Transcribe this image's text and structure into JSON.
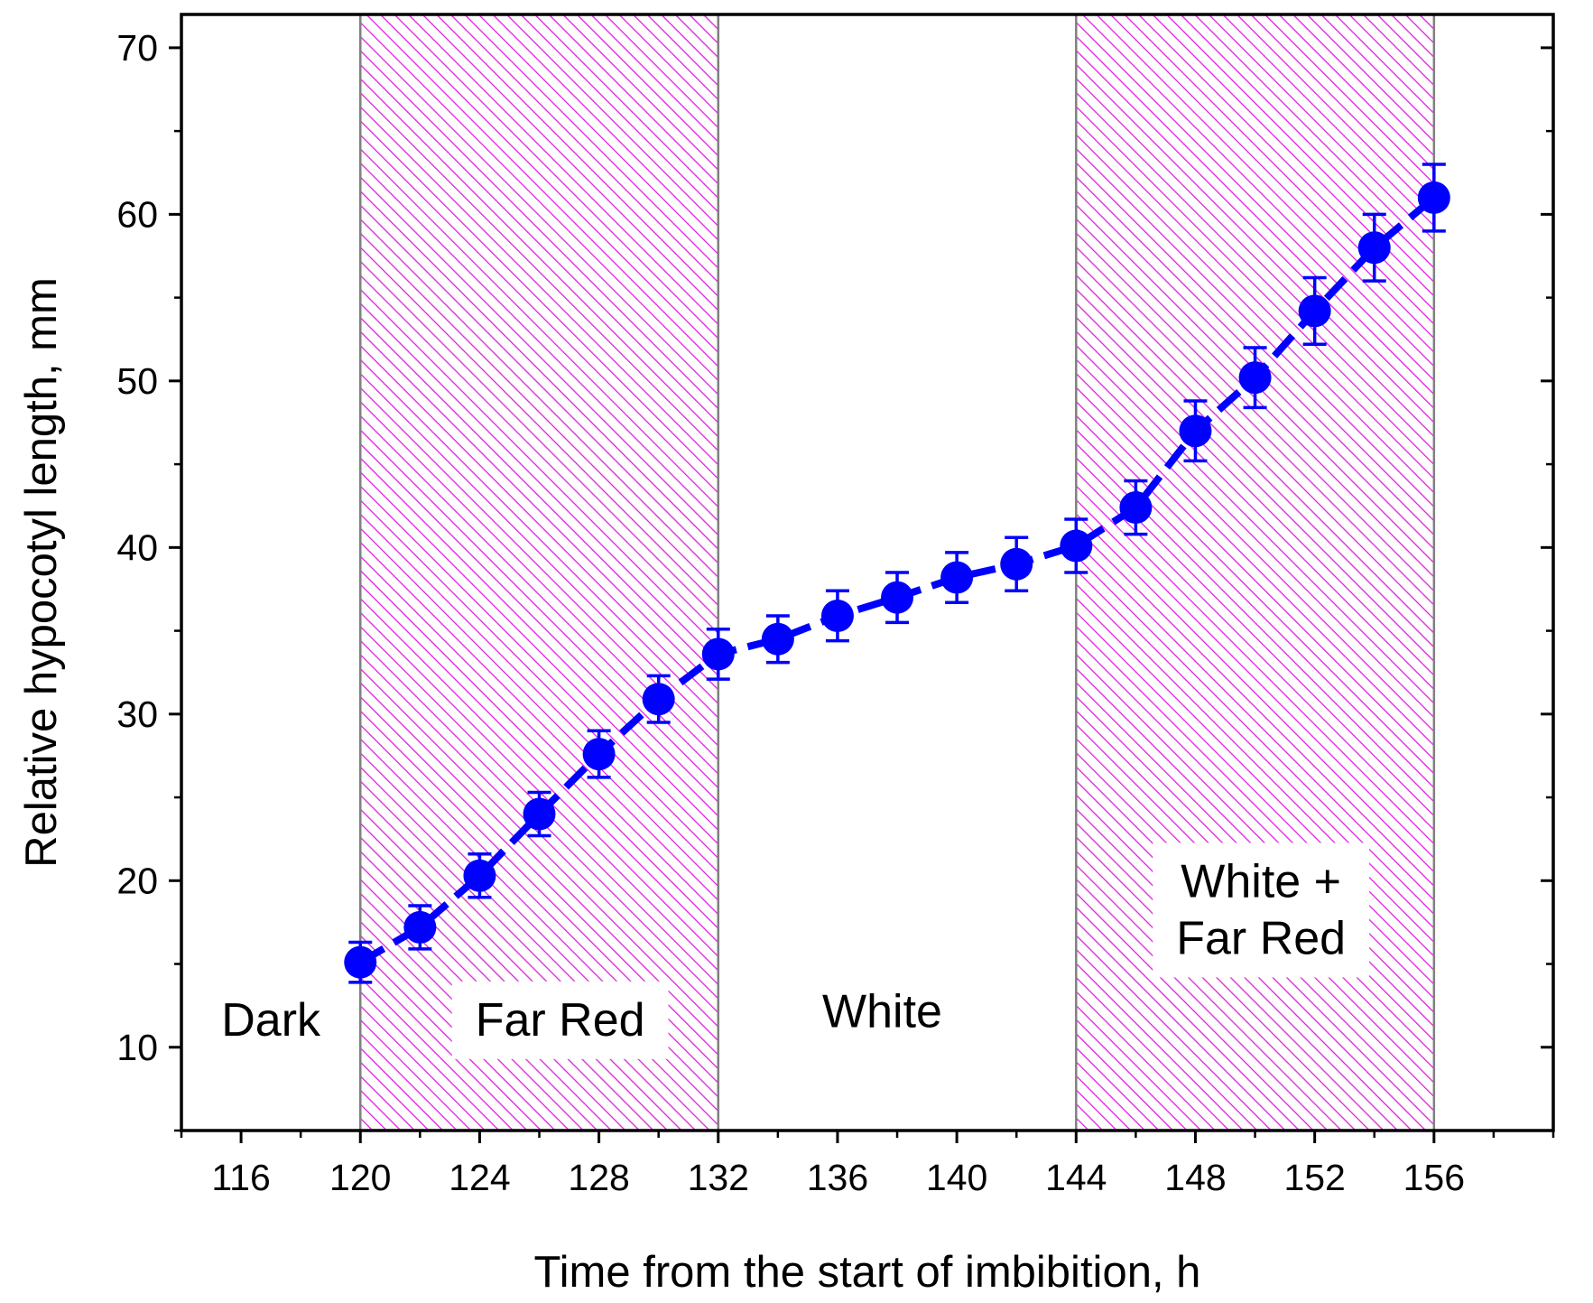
{
  "chart_data": {
    "type": "line",
    "title": "",
    "xlabel": "Time from the start of imbibition, h",
    "ylabel": "Relative hypocotyl length, mm",
    "xlim": [
      114,
      160
    ],
    "ylim": [
      5,
      72
    ],
    "x_ticks": [
      116,
      120,
      124,
      128,
      132,
      136,
      140,
      144,
      148,
      152,
      156
    ],
    "y_ticks": [
      10,
      20,
      30,
      40,
      50,
      60,
      70
    ],
    "grid": false,
    "legend": "none",
    "regions": [
      {
        "label_lines": [
          "Dark"
        ],
        "x_start": 114,
        "x_end": 120,
        "hatched": false,
        "label_x": 117,
        "label_y": 10.7
      },
      {
        "label_lines": [
          "Far Red"
        ],
        "x_start": 120,
        "x_end": 132,
        "hatched": true,
        "label_x": 126.7,
        "label_y": 10.7
      },
      {
        "label_lines": [
          "White"
        ],
        "x_start": 132,
        "x_end": 144,
        "hatched": false,
        "label_x": 137.5,
        "label_y": 11.2
      },
      {
        "label_lines": [
          "White +",
          "Far Red"
        ],
        "x_start": 144,
        "x_end": 156,
        "hatched": true,
        "label_x": 150.2,
        "label_y": 15.6
      }
    ],
    "series": [
      {
        "x": [
          120,
          122,
          124,
          126,
          128,
          130,
          132,
          134,
          136,
          138,
          140,
          142,
          144,
          146,
          148,
          150,
          152,
          154,
          156
        ],
        "y": [
          15.1,
          17.2,
          20.3,
          24.0,
          27.6,
          30.9,
          33.6,
          34.5,
          35.9,
          37.0,
          38.2,
          39.0,
          40.1,
          42.4,
          47.0,
          50.2,
          54.2,
          58.0,
          61.0
        ],
        "err": [
          1.2,
          1.3,
          1.3,
          1.3,
          1.4,
          1.4,
          1.5,
          1.4,
          1.5,
          1.5,
          1.5,
          1.6,
          1.6,
          1.6,
          1.8,
          1.8,
          2.0,
          2.0,
          2.0
        ]
      }
    ],
    "colors": {
      "series": "#0000ff",
      "hatch": "#e020e0",
      "region_border": "#808080"
    }
  }
}
